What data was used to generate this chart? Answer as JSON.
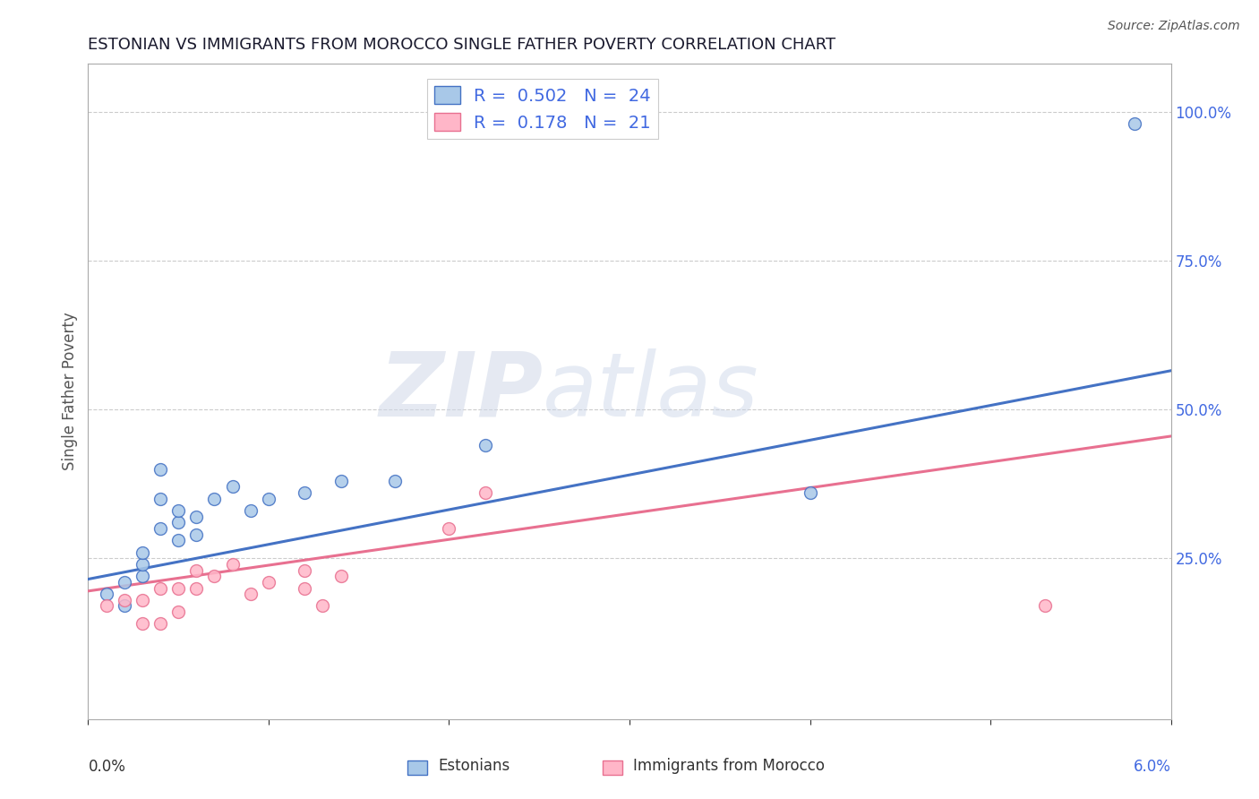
{
  "title": "ESTONIAN VS IMMIGRANTS FROM MOROCCO SINGLE FATHER POVERTY CORRELATION CHART",
  "source": "Source: ZipAtlas.com",
  "ylabel": "Single Father Poverty",
  "right_yticks": [
    0.0,
    0.25,
    0.5,
    0.75,
    1.0
  ],
  "right_yticklabels": [
    "",
    "25.0%",
    "50.0%",
    "75.0%",
    "100.0%"
  ],
  "xlim": [
    0.0,
    0.06
  ],
  "ylim": [
    -0.02,
    1.08
  ],
  "R_blue": 0.502,
  "N_blue": 24,
  "R_pink": 0.178,
  "N_pink": 21,
  "blue_scatter_x": [
    0.001,
    0.002,
    0.002,
    0.003,
    0.003,
    0.003,
    0.004,
    0.004,
    0.004,
    0.005,
    0.005,
    0.005,
    0.006,
    0.006,
    0.007,
    0.008,
    0.009,
    0.01,
    0.012,
    0.014,
    0.017,
    0.022,
    0.04,
    0.058
  ],
  "blue_scatter_y": [
    0.19,
    0.17,
    0.21,
    0.22,
    0.24,
    0.26,
    0.3,
    0.35,
    0.4,
    0.28,
    0.31,
    0.33,
    0.29,
    0.32,
    0.35,
    0.37,
    0.33,
    0.35,
    0.36,
    0.38,
    0.38,
    0.44,
    0.36,
    0.98
  ],
  "pink_scatter_x": [
    0.001,
    0.002,
    0.003,
    0.003,
    0.004,
    0.004,
    0.005,
    0.005,
    0.006,
    0.006,
    0.007,
    0.008,
    0.009,
    0.01,
    0.012,
    0.012,
    0.013,
    0.014,
    0.02,
    0.022,
    0.053
  ],
  "pink_scatter_y": [
    0.17,
    0.18,
    0.14,
    0.18,
    0.14,
    0.2,
    0.16,
    0.2,
    0.2,
    0.23,
    0.22,
    0.24,
    0.19,
    0.21,
    0.2,
    0.23,
    0.17,
    0.22,
    0.3,
    0.36,
    0.17
  ],
  "blue_line_x": [
    0.0,
    0.06
  ],
  "blue_line_y": [
    0.215,
    0.565
  ],
  "pink_line_x": [
    0.0,
    0.06
  ],
  "pink_line_y": [
    0.195,
    0.455
  ],
  "blue_color": "#A8C8E8",
  "blue_line_color": "#4472C4",
  "pink_color": "#FFB6C8",
  "pink_line_color": "#E87090",
  "watermark_zip": "ZIP",
  "watermark_atlas": "atlas",
  "background_color": "#FFFFFF",
  "grid_color": "#CCCCCC",
  "title_color": "#1a1a2e",
  "legend_text_color": "#4169E1",
  "scatter_size": 100
}
